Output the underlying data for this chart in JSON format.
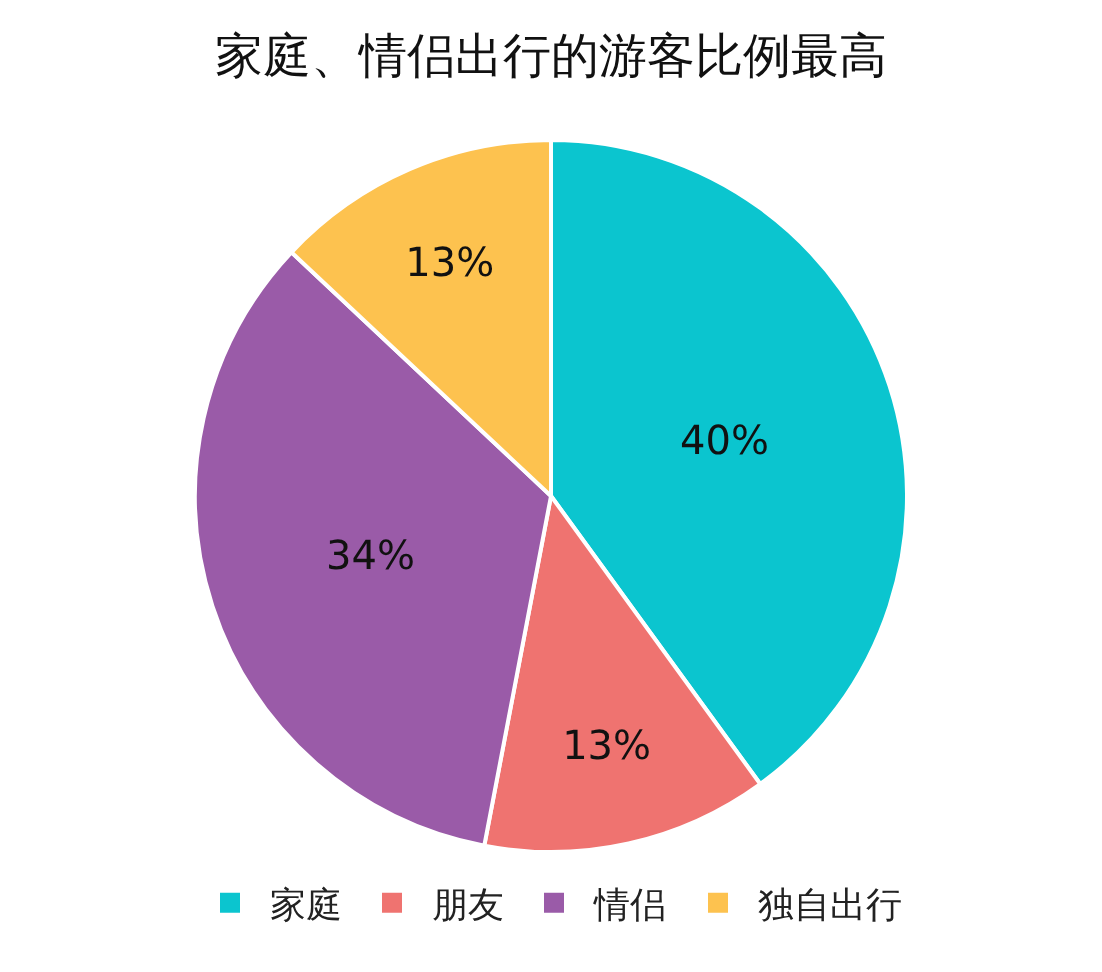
{
  "chart_data": {
    "type": "pie",
    "title": "家庭、情侣出行的游客比例最高",
    "categories": [
      "家庭",
      "朋友",
      "情侣",
      "独自出行"
    ],
    "values": [
      40,
      13,
      34,
      13
    ],
    "value_labels": [
      "40%",
      "13%",
      "34%",
      "13%"
    ],
    "colors": [
      "#0bc5cf",
      "#ef7370",
      "#9a5ba8",
      "#fdc24f"
    ],
    "legend": "bottom"
  }
}
